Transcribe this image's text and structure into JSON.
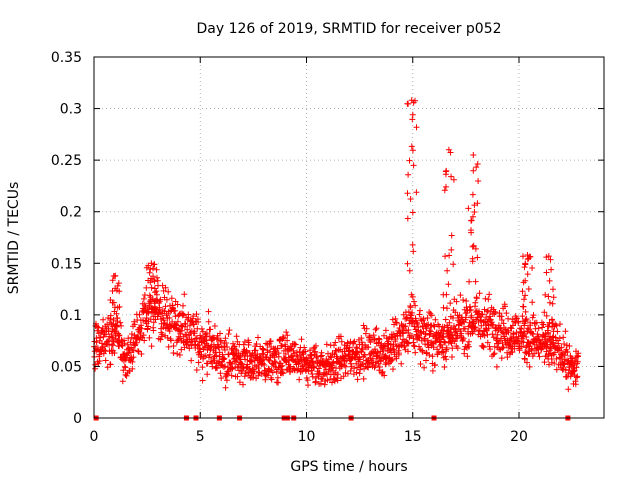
{
  "chart_data": {
    "type": "scatter",
    "title": "Day 126 of 2019, SRMTID for receiver p052",
    "xlabel": "GPS time / hours",
    "ylabel": "SRMTID / TECUs",
    "xlim": [
      0,
      24
    ],
    "ylim": [
      0,
      0.35
    ],
    "xticks": [
      0,
      5,
      10,
      15,
      20
    ],
    "xtick_labels": [
      "0",
      "5",
      "10",
      "15",
      "20"
    ],
    "yticks": [
      0,
      0.05,
      0.1,
      0.15,
      0.2,
      0.25,
      0.3,
      0.35
    ],
    "ytick_labels": [
      "0",
      "0.05",
      "0.1",
      "0.15",
      "0.2",
      "0.25",
      "0.3",
      "0.35"
    ],
    "grid": true,
    "marker": "plus",
    "color": "#ff0000",
    "baseline_markers_x": [
      0.1,
      4.35,
      4.8,
      5.9,
      6.85,
      8.95,
      9.1,
      9.4,
      12.1,
      16.0,
      22.3
    ],
    "trend": [
      [
        0.0,
        0.07
      ],
      [
        0.5,
        0.078
      ],
      [
        1.0,
        0.085
      ],
      [
        1.5,
        0.055
      ],
      [
        2.0,
        0.08
      ],
      [
        2.5,
        0.1
      ],
      [
        3.0,
        0.105
      ],
      [
        3.5,
        0.095
      ],
      [
        4.0,
        0.09
      ],
      [
        4.5,
        0.08
      ],
      [
        5.0,
        0.075
      ],
      [
        5.5,
        0.068
      ],
      [
        6.0,
        0.062
      ],
      [
        6.5,
        0.058
      ],
      [
        7.0,
        0.056
      ],
      [
        7.5,
        0.054
      ],
      [
        8.0,
        0.055
      ],
      [
        8.5,
        0.056
      ],
      [
        9.0,
        0.058
      ],
      [
        9.5,
        0.055
      ],
      [
        10.0,
        0.052
      ],
      [
        10.5,
        0.05
      ],
      [
        11.0,
        0.05
      ],
      [
        11.5,
        0.055
      ],
      [
        12.0,
        0.06
      ],
      [
        12.5,
        0.062
      ],
      [
        13.0,
        0.063
      ],
      [
        13.5,
        0.065
      ],
      [
        14.0,
        0.068
      ],
      [
        14.5,
        0.078
      ],
      [
        15.0,
        0.09
      ],
      [
        15.5,
        0.08
      ],
      [
        16.0,
        0.075
      ],
      [
        16.5,
        0.078
      ],
      [
        17.0,
        0.082
      ],
      [
        17.5,
        0.09
      ],
      [
        18.0,
        0.095
      ],
      [
        18.5,
        0.092
      ],
      [
        19.0,
        0.088
      ],
      [
        19.5,
        0.082
      ],
      [
        20.0,
        0.08
      ],
      [
        20.5,
        0.078
      ],
      [
        21.0,
        0.072
      ],
      [
        21.5,
        0.07
      ],
      [
        22.0,
        0.065
      ],
      [
        22.5,
        0.045
      ],
      [
        22.8,
        0.055
      ]
    ],
    "spikes": [
      {
        "x": 1.0,
        "peak": 0.138
      },
      {
        "x": 2.7,
        "peak": 0.15
      },
      {
        "x": 14.95,
        "peak": 0.308
      },
      {
        "x": 16.7,
        "peak": 0.26
      },
      {
        "x": 17.85,
        "peak": 0.255
      },
      {
        "x": 20.4,
        "peak": 0.158
      },
      {
        "x": 21.4,
        "peak": 0.157
      }
    ]
  }
}
